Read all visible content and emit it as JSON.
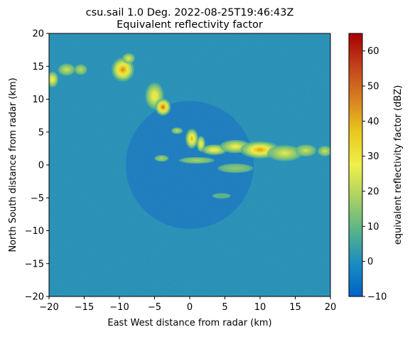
{
  "chart_data": {
    "type": "heatmap",
    "title": "csu.sail 1.0 Deg. 2022-08-25T19:46:43Z",
    "subtitle": "Equivalent reflectivity factor",
    "xlabel": "East West distance from radar (km)",
    "ylabel": "North South distance from radar (km)",
    "xlim": [
      -20,
      20
    ],
    "ylim": [
      -20,
      20
    ],
    "x_ticks": [
      -20,
      -15,
      -10,
      -5,
      0,
      5,
      10,
      15,
      20
    ],
    "y_ticks": [
      -20,
      -15,
      -10,
      -5,
      0,
      5,
      10,
      15,
      20
    ],
    "x_tick_labels": [
      "−20",
      "−15",
      "−10",
      "−5",
      "0",
      "5",
      "10",
      "15",
      "20"
    ],
    "y_tick_labels": [
      "−20",
      "−15",
      "−10",
      "−5",
      "0",
      "5",
      "10",
      "15",
      "20"
    ],
    "background_level_dbz": 0,
    "echoes": [
      {
        "x": -9.5,
        "y": 14.5,
        "rx": 1.6,
        "ry": 1.8,
        "max_dbz": 44
      },
      {
        "x": -8.7,
        "y": 16.2,
        "rx": 0.9,
        "ry": 0.8,
        "max_dbz": 25
      },
      {
        "x": -5.0,
        "y": 10.5,
        "rx": 1.3,
        "ry": 2.0,
        "max_dbz": 30
      },
      {
        "x": -3.8,
        "y": 8.8,
        "rx": 1.1,
        "ry": 1.3,
        "max_dbz": 47
      },
      {
        "x": -19.5,
        "y": 13.0,
        "rx": 0.8,
        "ry": 1.2,
        "max_dbz": 30
      },
      {
        "x": -17.5,
        "y": 14.5,
        "rx": 1.2,
        "ry": 0.9,
        "max_dbz": 22
      },
      {
        "x": -15.5,
        "y": 14.5,
        "rx": 0.9,
        "ry": 0.8,
        "max_dbz": 20
      },
      {
        "x": 0.3,
        "y": 4.0,
        "rx": 0.9,
        "ry": 1.5,
        "max_dbz": 38
      },
      {
        "x": 1.6,
        "y": 3.2,
        "rx": 0.6,
        "ry": 1.2,
        "max_dbz": 30
      },
      {
        "x": -1.8,
        "y": 5.2,
        "rx": 0.8,
        "ry": 0.5,
        "max_dbz": 20
      },
      {
        "x": 3.5,
        "y": 2.3,
        "rx": 1.8,
        "ry": 0.8,
        "max_dbz": 30
      },
      {
        "x": 6.5,
        "y": 2.8,
        "rx": 2.2,
        "ry": 1.0,
        "max_dbz": 28
      },
      {
        "x": 10.0,
        "y": 2.3,
        "rx": 2.8,
        "ry": 1.3,
        "max_dbz": 41
      },
      {
        "x": 13.5,
        "y": 1.8,
        "rx": 2.5,
        "ry": 1.2,
        "max_dbz": 25
      },
      {
        "x": 16.5,
        "y": 2.2,
        "rx": 1.5,
        "ry": 0.9,
        "max_dbz": 22
      },
      {
        "x": 19.2,
        "y": 2.1,
        "rx": 1.0,
        "ry": 0.8,
        "max_dbz": 22
      },
      {
        "x": 1.0,
        "y": 0.7,
        "rx": 2.5,
        "ry": 0.5,
        "max_dbz": 18
      },
      {
        "x": 6.5,
        "y": -0.5,
        "rx": 2.5,
        "ry": 0.7,
        "max_dbz": 15
      },
      {
        "x": -4.0,
        "y": 1.0,
        "rx": 1.0,
        "ry": 0.5,
        "max_dbz": 18
      },
      {
        "x": 4.5,
        "y": -4.7,
        "rx": 1.3,
        "ry": 0.4,
        "max_dbz": 8
      }
    ],
    "colorbar": {
      "label": "equivalent reflectivity factor (dBZ)",
      "min": -10,
      "max": 65,
      "ticks": [
        -10,
        0,
        10,
        20,
        30,
        40,
        50,
        60
      ],
      "tick_labels": [
        "−10",
        "0",
        "10",
        "20",
        "30",
        "40",
        "50",
        "60"
      ],
      "colormap": [
        "#0063c6",
        "#1a8cc2",
        "#58b38a",
        "#a9d163",
        "#f0f04a",
        "#e8c81e",
        "#d88020",
        "#c2421c",
        "#a80000"
      ]
    }
  }
}
